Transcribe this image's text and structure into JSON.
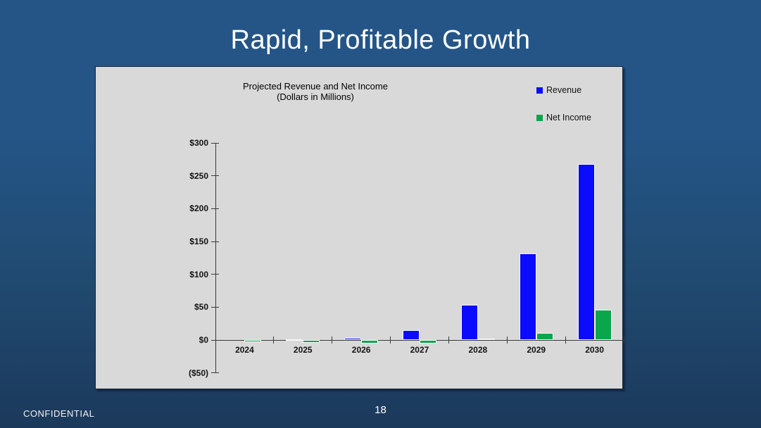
{
  "slide": {
    "title": "Rapid, Profitable Growth",
    "footer_left": "CONFIDENTIAL",
    "page_number": "18"
  },
  "colors": {
    "background_top": "#245586",
    "background_bottom": "#1b395b",
    "panel_background": "#d9d9d9",
    "revenue_bar": "#0b0bfe",
    "net_income_bar": "#0aa64c",
    "axis": "#3a3a3a",
    "title_text": "#ffffff"
  },
  "chart_data": {
    "type": "bar",
    "title": "Projected Revenue and Net Income",
    "subtitle": "(Dollars in Millions)",
    "categories": [
      "2024",
      "2025",
      "2026",
      "2027",
      "2028",
      "2029",
      "2030"
    ],
    "series": [
      {
        "name": "Revenue",
        "color": "#0b0bfe",
        "values": [
          0,
          1,
          3,
          15,
          54,
          132,
          268
        ]
      },
      {
        "name": "Net Income",
        "color": "#0aa64c",
        "values": [
          -3,
          -4,
          -5,
          -5,
          2,
          11,
          46
        ]
      }
    ],
    "y_ticks": [
      "$300",
      "$250",
      "$200",
      "$150",
      "$100",
      "$50",
      "$0",
      "($50)"
    ],
    "y_tick_values": [
      300,
      250,
      200,
      150,
      100,
      50,
      0,
      -50
    ],
    "ylim": [
      -50,
      300
    ],
    "xlabel": "",
    "ylabel": "",
    "legend_position": "top-right",
    "grid": false
  }
}
